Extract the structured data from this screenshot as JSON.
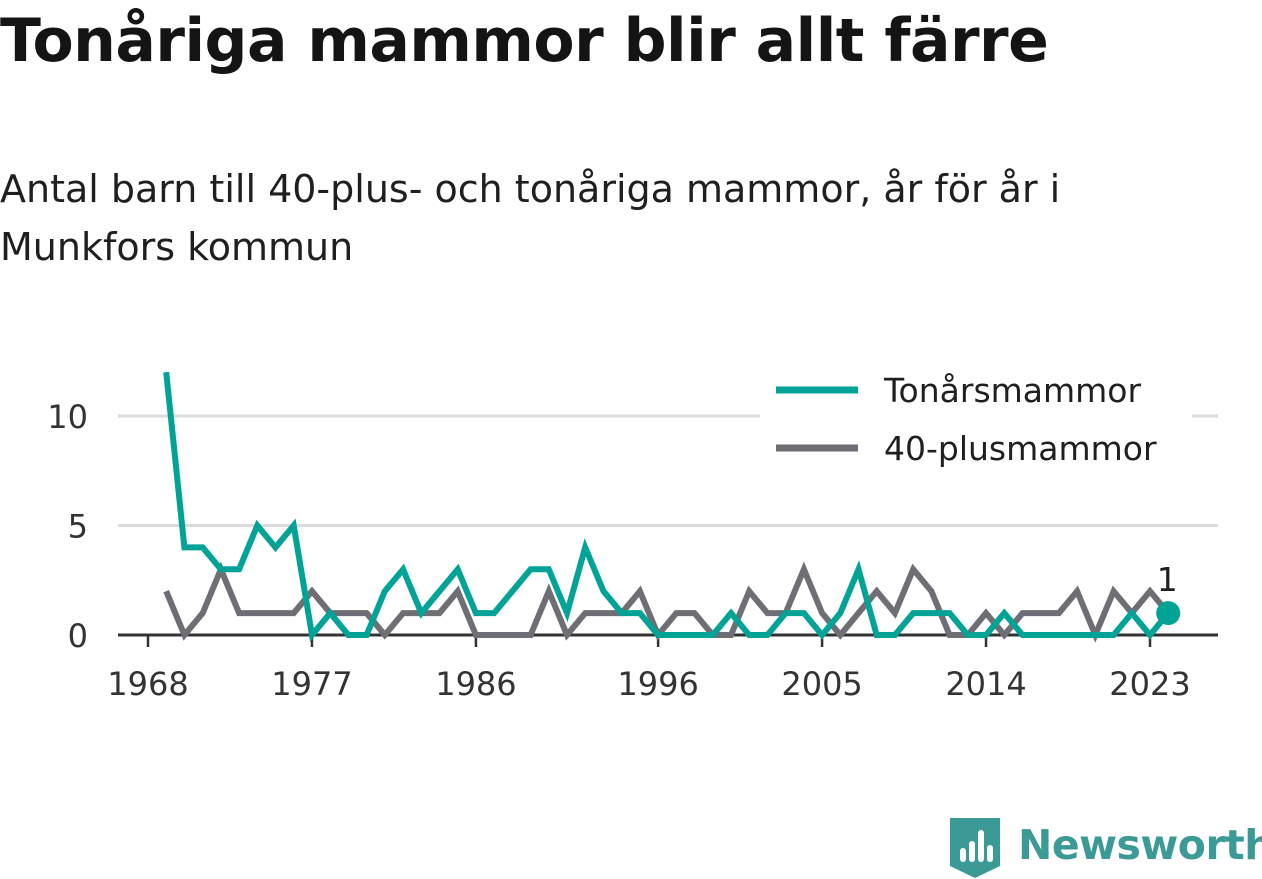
{
  "title": "Tonåriga mammor blir allt färre",
  "subtitle": "Antal barn till 40-plus- och tonåriga mammor, år för år i Munkfors kommun",
  "brand": {
    "name": "Newsworthy"
  },
  "colors": {
    "teen": "#00a396",
    "plus40": "#6e6e75",
    "grid": "#dcdcdc",
    "axis": "#333333",
    "brand": "#3c9a96"
  },
  "chart_data": {
    "type": "line",
    "title": "Tonåriga mammor blir allt färre",
    "subtitle": "Antal barn till 40-plus- och tonåriga mammor, år för år i Munkfors kommun",
    "xlabel": "",
    "ylabel": "",
    "x": [
      1969,
      1970,
      1971,
      1972,
      1973,
      1974,
      1975,
      1976,
      1977,
      1978,
      1979,
      1980,
      1981,
      1982,
      1983,
      1984,
      1985,
      1986,
      1987,
      1988,
      1989,
      1990,
      1991,
      1992,
      1993,
      1994,
      1995,
      1996,
      1997,
      1998,
      1999,
      2000,
      2001,
      2002,
      2003,
      2004,
      2005,
      2006,
      2007,
      2008,
      2009,
      2010,
      2011,
      2012,
      2013,
      2014,
      2015,
      2016,
      2017,
      2018,
      2019,
      2020,
      2021,
      2022,
      2023,
      2024
    ],
    "series": [
      {
        "name": "Tonårsmammor",
        "color": "#00a396",
        "values": [
          12,
          4,
          4,
          3,
          3,
          5,
          4,
          5,
          0,
          1,
          0,
          0,
          2,
          3,
          1,
          2,
          3,
          1,
          1,
          2,
          3,
          3,
          1,
          4,
          2,
          1,
          1,
          0,
          0,
          0,
          0,
          1,
          0,
          0,
          1,
          1,
          0,
          1,
          3,
          0,
          0,
          1,
          1,
          1,
          0,
          0,
          1,
          0,
          0,
          0,
          0,
          0,
          0,
          1,
          0,
          1
        ]
      },
      {
        "name": "40-plusmammor",
        "color": "#6e6e75",
        "values": [
          2,
          0,
          1,
          3,
          1,
          1,
          1,
          1,
          2,
          1,
          1,
          1,
          0,
          1,
          1,
          1,
          2,
          0,
          0,
          0,
          0,
          2,
          0,
          1,
          1,
          1,
          2,
          0,
          1,
          1,
          0,
          0,
          2,
          1,
          1,
          3,
          1,
          0,
          1,
          2,
          1,
          3,
          2,
          0,
          0,
          1,
          0,
          1,
          1,
          1,
          2,
          0,
          2,
          1,
          2,
          1
        ]
      }
    ],
    "x_ticks": [
      1968,
      1977,
      1986,
      1996,
      2005,
      2014,
      2023
    ],
    "y_ticks": [
      0,
      5,
      10
    ],
    "ylim": [
      0,
      12
    ],
    "xlim": [
      1968,
      2027
    ],
    "grid": "horizontal",
    "legend": [
      "Tonårsmammor",
      "40-plusmammor"
    ],
    "legend_position": "top-right",
    "end_label": "1"
  }
}
